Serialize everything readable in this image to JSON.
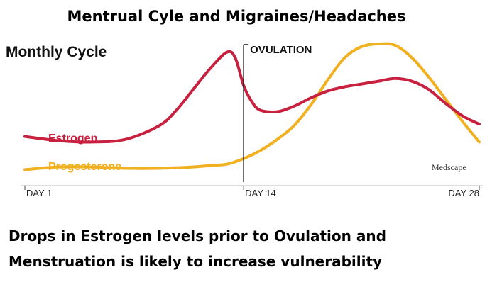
{
  "chart_data": {
    "type": "line",
    "title": "Mentrual Cyle and Migraines/Headaches",
    "subtitle": "Monthly Cycle",
    "x_ticks": [
      {
        "day": 1,
        "label": "DAY 1"
      },
      {
        "day": 14,
        "label": "DAY 14"
      },
      {
        "day": 28,
        "label": "DAY 28"
      }
    ],
    "xlim": [
      1,
      28
    ],
    "ylim": [
      0,
      100
    ],
    "grid": false,
    "series": [
      {
        "name": "Estrogen",
        "color": "#c8203f",
        "x": [
          1,
          3,
          5,
          7,
          9,
          10,
          11,
          12,
          13,
          13.5,
          14,
          14.5,
          15,
          16,
          17,
          18,
          19,
          20,
          21,
          22,
          23,
          24,
          25,
          26,
          27,
          28
        ],
        "y": [
          33,
          30,
          29,
          31,
          41,
          52,
          67,
          82,
          94,
          90,
          70,
          58,
          52,
          51,
          55,
          61,
          66,
          69,
          71,
          73,
          75,
          73,
          67,
          57,
          48,
          42
        ]
      },
      {
        "name": "Progesterone",
        "color": "#f0b020",
        "x": [
          1,
          3,
          5,
          7,
          9,
          11,
          12,
          13,
          14,
          15,
          16,
          17,
          18,
          19,
          20,
          21,
          22,
          23,
          24,
          25,
          26,
          27,
          28
        ],
        "y": [
          9,
          11,
          11,
          10,
          10,
          11,
          12,
          13,
          17,
          23,
          31,
          41,
          56,
          74,
          90,
          98,
          100,
          99,
          90,
          76,
          60,
          44,
          29
        ]
      }
    ],
    "events": [
      {
        "day": 14,
        "label": "OVULATION"
      }
    ],
    "source": "Medscape"
  },
  "caption": {
    "lines": [
      "Drops in Estrogen levels prior to Ovulation and",
      "Menstruation is likely to increase vulnerability"
    ]
  }
}
